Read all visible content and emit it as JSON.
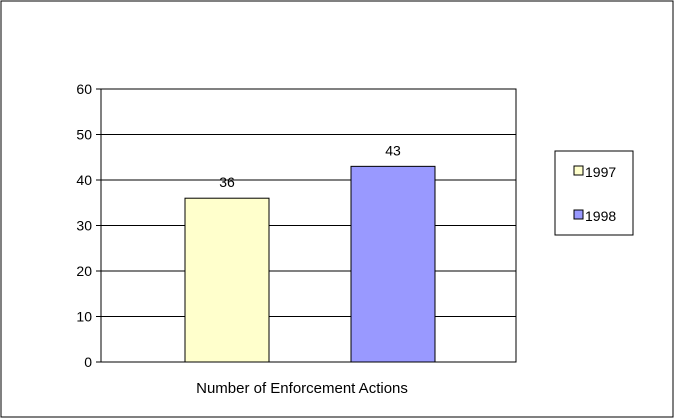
{
  "chart_data": {
    "type": "bar",
    "xlabel": "Number of Enforcement Actions",
    "ylim": [
      0,
      60
    ],
    "yticks": [
      0,
      10,
      20,
      30,
      40,
      50,
      60
    ],
    "grid": true,
    "legend_position": "right",
    "series": [
      {
        "name": "1997",
        "values": [
          36
        ],
        "color": "#FFFFCC"
      },
      {
        "name": "1998",
        "values": [
          43
        ],
        "color": "#9999FF"
      }
    ]
  }
}
